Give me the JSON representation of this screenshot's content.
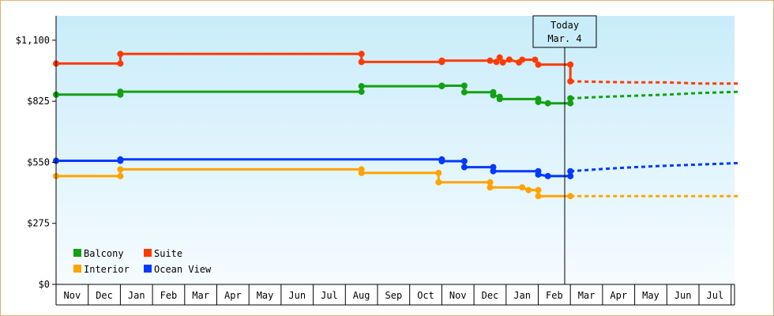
{
  "chart_data": {
    "type": "line",
    "yticks": [
      "$0",
      "$275",
      "$550",
      "$825",
      "$1,100"
    ],
    "ylim": [
      0,
      1210
    ],
    "months": [
      "Nov",
      "Dec",
      "Jan",
      "Feb",
      "Mar",
      "Apr",
      "May",
      "Jun",
      "Jul",
      "Aug",
      "Sep",
      "Oct",
      "Nov",
      "Dec",
      "Jan",
      "Feb",
      "Mar",
      "Apr",
      "May",
      "Jun",
      "Jul"
    ],
    "today": {
      "line1": "Today",
      "line2": "Mar. 4"
    },
    "legend_position": "bottom-left",
    "grid": false,
    "series": [
      {
        "name": "Suite",
        "color": "#ff3a00",
        "points": [
          [
            0,
            995
          ],
          [
            2,
            995
          ],
          [
            2,
            1038
          ],
          [
            9.5,
            1038
          ],
          [
            9.5,
            1002
          ],
          [
            12,
            1002
          ],
          [
            12,
            1008
          ],
          [
            13.5,
            1008
          ],
          [
            13.7,
            1002
          ],
          [
            13.8,
            1022
          ],
          [
            13.9,
            1000
          ],
          [
            14.1,
            1013
          ],
          [
            14.4,
            1000
          ],
          [
            14.5,
            1012
          ],
          [
            14.9,
            1012
          ],
          [
            15.0,
            990
          ],
          [
            16.0,
            990
          ],
          [
            16.0,
            915
          ]
        ],
        "forecast": [
          [
            16.0,
            915
          ],
          [
            17,
            912
          ],
          [
            18,
            910
          ],
          [
            19,
            910
          ],
          [
            20,
            905
          ],
          [
            21.3,
            905
          ]
        ]
      },
      {
        "name": "Balcony",
        "color": "#13a013",
        "points": [
          [
            0,
            855
          ],
          [
            2,
            855
          ],
          [
            2,
            868
          ],
          [
            9.5,
            868
          ],
          [
            9.5,
            893
          ],
          [
            12,
            893
          ],
          [
            12,
            895
          ],
          [
            12.7,
            895
          ],
          [
            12.7,
            866
          ],
          [
            13.6,
            866
          ],
          [
            13.6,
            852
          ],
          [
            13.8,
            845
          ],
          [
            13.8,
            835
          ],
          [
            15.0,
            835
          ],
          [
            15.0,
            822
          ],
          [
            15.3,
            816
          ],
          [
            16.0,
            816
          ],
          [
            16.0,
            838
          ]
        ],
        "forecast": [
          [
            16.0,
            838
          ],
          [
            17,
            845
          ],
          [
            18,
            850
          ],
          [
            19,
            855
          ],
          [
            20,
            862
          ],
          [
            21.3,
            868
          ]
        ]
      },
      {
        "name": "Ocean View",
        "color": "#0039ff",
        "points": [
          [
            0,
            557
          ],
          [
            2,
            557
          ],
          [
            2,
            563
          ],
          [
            12,
            563
          ],
          [
            12,
            555
          ],
          [
            12.7,
            555
          ],
          [
            12.7,
            528
          ],
          [
            13.6,
            528
          ],
          [
            13.6,
            510
          ],
          [
            15.0,
            510
          ],
          [
            15.0,
            495
          ],
          [
            15.3,
            488
          ],
          [
            16.0,
            488
          ],
          [
            16.0,
            510
          ]
        ],
        "forecast": [
          [
            16.0,
            510
          ],
          [
            17,
            520
          ],
          [
            18,
            528
          ],
          [
            19,
            535
          ],
          [
            20,
            540
          ],
          [
            21.3,
            547
          ]
        ]
      },
      {
        "name": "Interior",
        "color": "#ffa300",
        "points": [
          [
            0,
            488
          ],
          [
            2,
            488
          ],
          [
            2,
            518
          ],
          [
            9.5,
            518
          ],
          [
            9.5,
            502
          ],
          [
            11.9,
            502
          ],
          [
            11.9,
            460
          ],
          [
            13.5,
            460
          ],
          [
            13.5,
            437
          ],
          [
            14.5,
            437
          ],
          [
            14.7,
            425
          ],
          [
            15.0,
            425
          ],
          [
            15.0,
            398
          ],
          [
            16.0,
            398
          ]
        ],
        "forecast": [
          [
            16.0,
            398
          ],
          [
            17,
            398
          ],
          [
            18,
            398
          ],
          [
            19,
            398
          ],
          [
            20,
            398
          ],
          [
            21.3,
            398
          ]
        ]
      }
    ],
    "legend": [
      {
        "name": "Balcony",
        "color": "#13a013"
      },
      {
        "name": "Suite",
        "color": "#ff3a00"
      },
      {
        "name": "Interior",
        "color": "#ffa300"
      },
      {
        "name": "Ocean View",
        "color": "#0039ff"
      }
    ],
    "markers": {
      "Suite": [
        2,
        9.5,
        12,
        13.5,
        13.7,
        13.8,
        13.9,
        14.1,
        14.4,
        14.5,
        14.9,
        15.0,
        16.0,
        16.0
      ],
      "Balcony": [
        2,
        9.5,
        12,
        12.7,
        13.6,
        13.8,
        15.0,
        15.3,
        16.0
      ],
      "Ocean View": [
        0,
        2,
        12,
        12.7,
        13.6,
        15.0,
        15.3,
        16.0
      ],
      "Interior": [
        2,
        9.5,
        11.9,
        13.5,
        13.7,
        14.1,
        14.5,
        14.7,
        15.0
      ]
    }
  }
}
